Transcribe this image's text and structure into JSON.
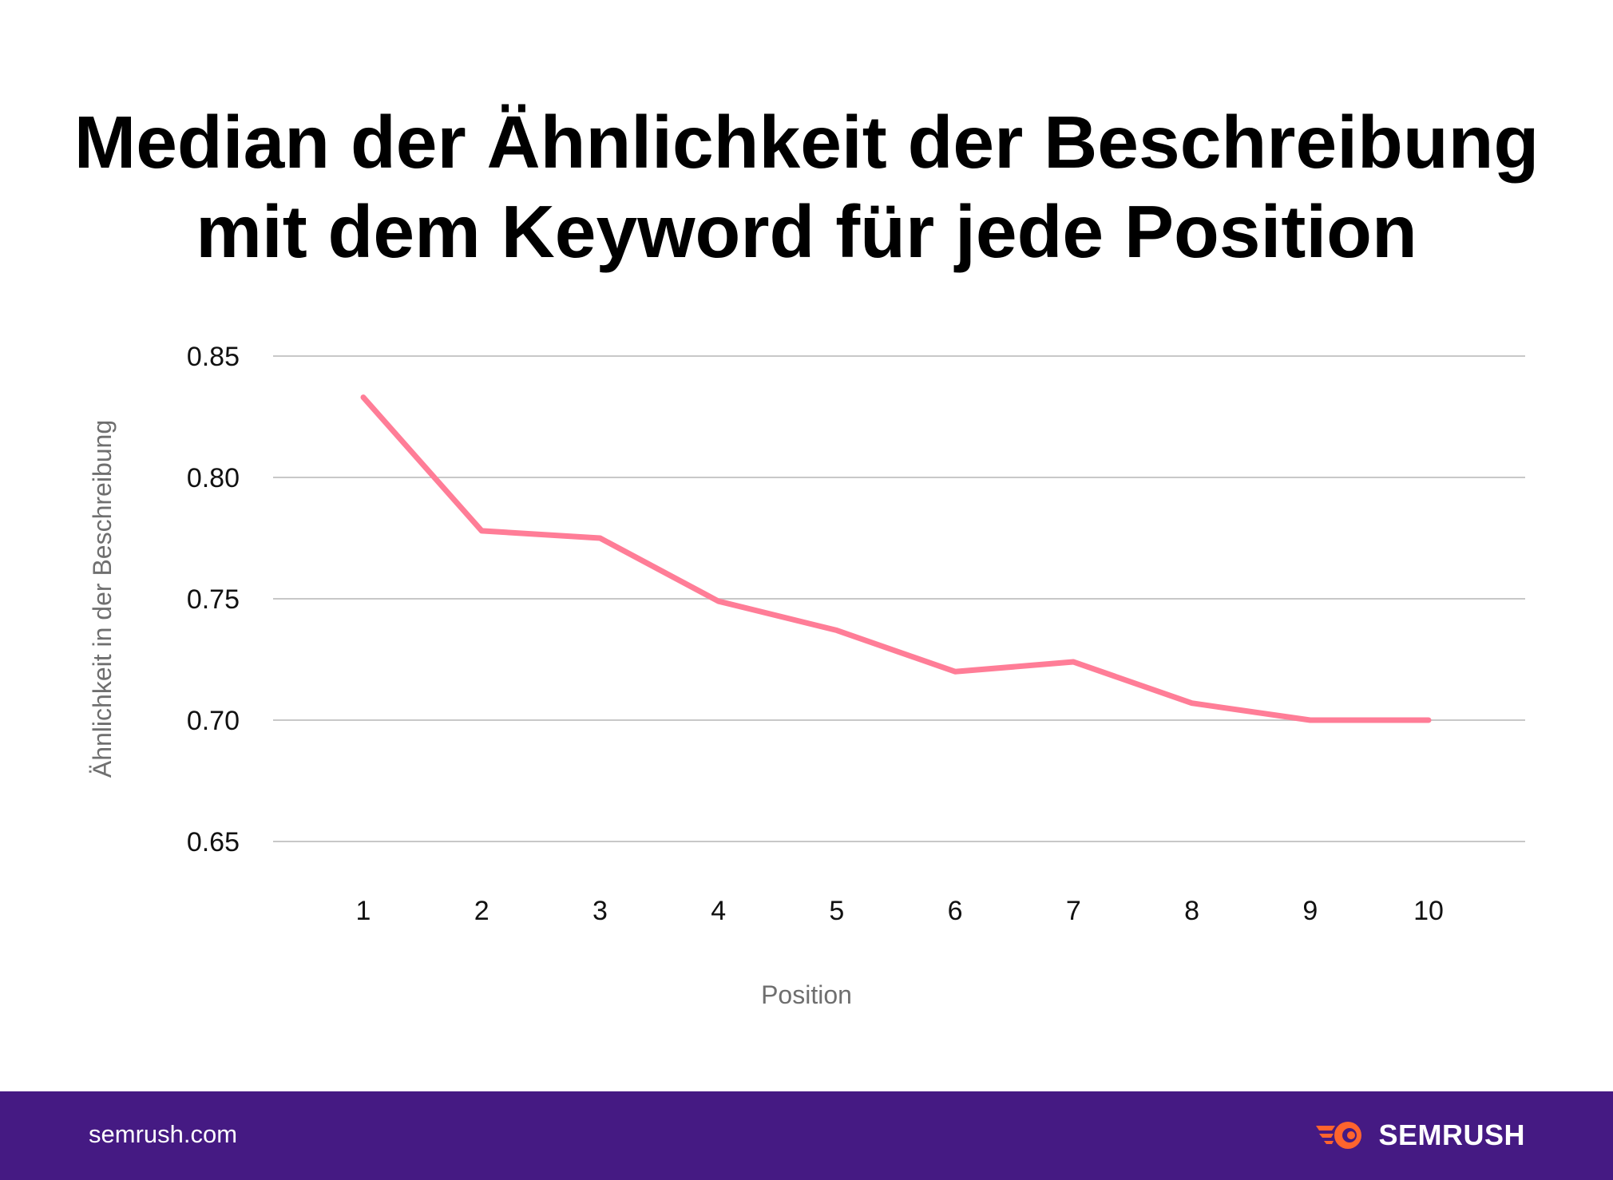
{
  "chart_data": {
    "type": "line",
    "title_lines": [
      "Median der Ähnlichkeit der Beschreibung",
      "mit dem Keyword für jede Position"
    ],
    "xlabel": "Position",
    "ylabel": "Ähnlichkeit in der Beschreibung",
    "x": [
      "1",
      "2",
      "3",
      "4",
      "5",
      "6",
      "7",
      "8",
      "9",
      "10"
    ],
    "series": [
      {
        "name": "Median",
        "values": [
          0.833,
          0.778,
          0.775,
          0.749,
          0.737,
          0.72,
          0.724,
          0.707,
          0.7,
          0.7
        ],
        "color": "#ff7d97"
      }
    ],
    "yticks": [
      "0.85",
      "0.80",
      "0.75",
      "0.70",
      "0.65"
    ],
    "ylim": [
      0.65,
      0.85
    ],
    "grid": true
  },
  "colors": {
    "gridline": "#c8c8c8",
    "axis_label": "#6f6f6f",
    "tick_label": "#111111",
    "footer_bg": "#451a83",
    "brand_orange": "#ff642d"
  },
  "footer": {
    "url": "semrush.com",
    "brand": "SEMRUSH",
    "logo_icon": "semrush-fire-icon"
  }
}
